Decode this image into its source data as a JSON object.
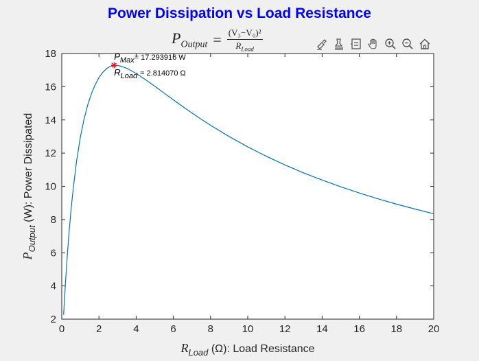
{
  "chart_data": {
    "type": "line",
    "title": "Power Dissipation vs Load Resistance",
    "subtitle": {
      "lhs_symbol": "P",
      "lhs_subscript": "Output",
      "equals": "=",
      "numerator": "(V₃−V₀)²",
      "denominator_symbol": "R",
      "denominator_subscript": "Load"
    },
    "xlabel": {
      "symbol": "R",
      "subscript": "Load",
      "rest": " (Ω): Load Resistance"
    },
    "ylabel": {
      "symbol": "P",
      "subscript": "Output",
      "rest": " (W): Power Dissipated"
    },
    "xlim": [
      0,
      20
    ],
    "ylim": [
      2,
      18
    ],
    "xticks": [
      0,
      2,
      4,
      6,
      8,
      10,
      12,
      14,
      16,
      18,
      20
    ],
    "yticks": [
      2,
      4,
      6,
      8,
      10,
      12,
      14,
      16,
      18
    ],
    "grid": false,
    "line_color": "#0072bd",
    "marker_color": "#ff0000",
    "series": [
      {
        "x": [
          0.1,
          0.2,
          0.3,
          0.4,
          0.5,
          0.6,
          0.8,
          1.0,
          1.2,
          1.4,
          1.6,
          1.8,
          2.0,
          2.2,
          2.4,
          2.6,
          2.814,
          3.0,
          3.2,
          3.5,
          4.0,
          4.5,
          5.0,
          5.5,
          6.0,
          6.5,
          7.0,
          7.5,
          8.0,
          9.0,
          10.0,
          11.0,
          12.0,
          13.0,
          14.0,
          15.0,
          16.0,
          17.0,
          18.0,
          19.0,
          20.0
        ],
        "y": [
          2.26,
          4.2,
          5.88,
          7.33,
          8.6,
          9.71,
          11.55,
          12.96,
          14.06,
          14.92,
          15.6,
          16.13,
          16.55,
          16.86,
          17.08,
          17.23,
          17.29,
          17.28,
          17.23,
          17.11,
          16.8,
          16.43,
          16.03,
          15.62,
          15.21,
          14.81,
          14.42,
          14.04,
          13.68,
          13.0,
          12.38,
          11.81,
          11.29,
          10.81,
          10.38,
          9.97,
          9.6,
          9.25,
          8.93,
          8.63,
          8.35
        ]
      }
    ],
    "marker": {
      "x": 2.81407,
      "y": 17.293916,
      "style": "asterisk"
    },
    "annotation": {
      "pmax_symbol": "P",
      "pmax_subscript": "Max",
      "pmax_value": "= 17.293916 W",
      "rload_symbol": "R",
      "rload_subscript": "Load",
      "rload_value": "= 2.814070 Ω"
    }
  },
  "toolbar": {
    "icons": [
      "brush-icon",
      "data-tips-icon",
      "legend-icon",
      "pan-hand-icon",
      "zoom-in-icon",
      "zoom-out-icon",
      "home-icon"
    ]
  }
}
